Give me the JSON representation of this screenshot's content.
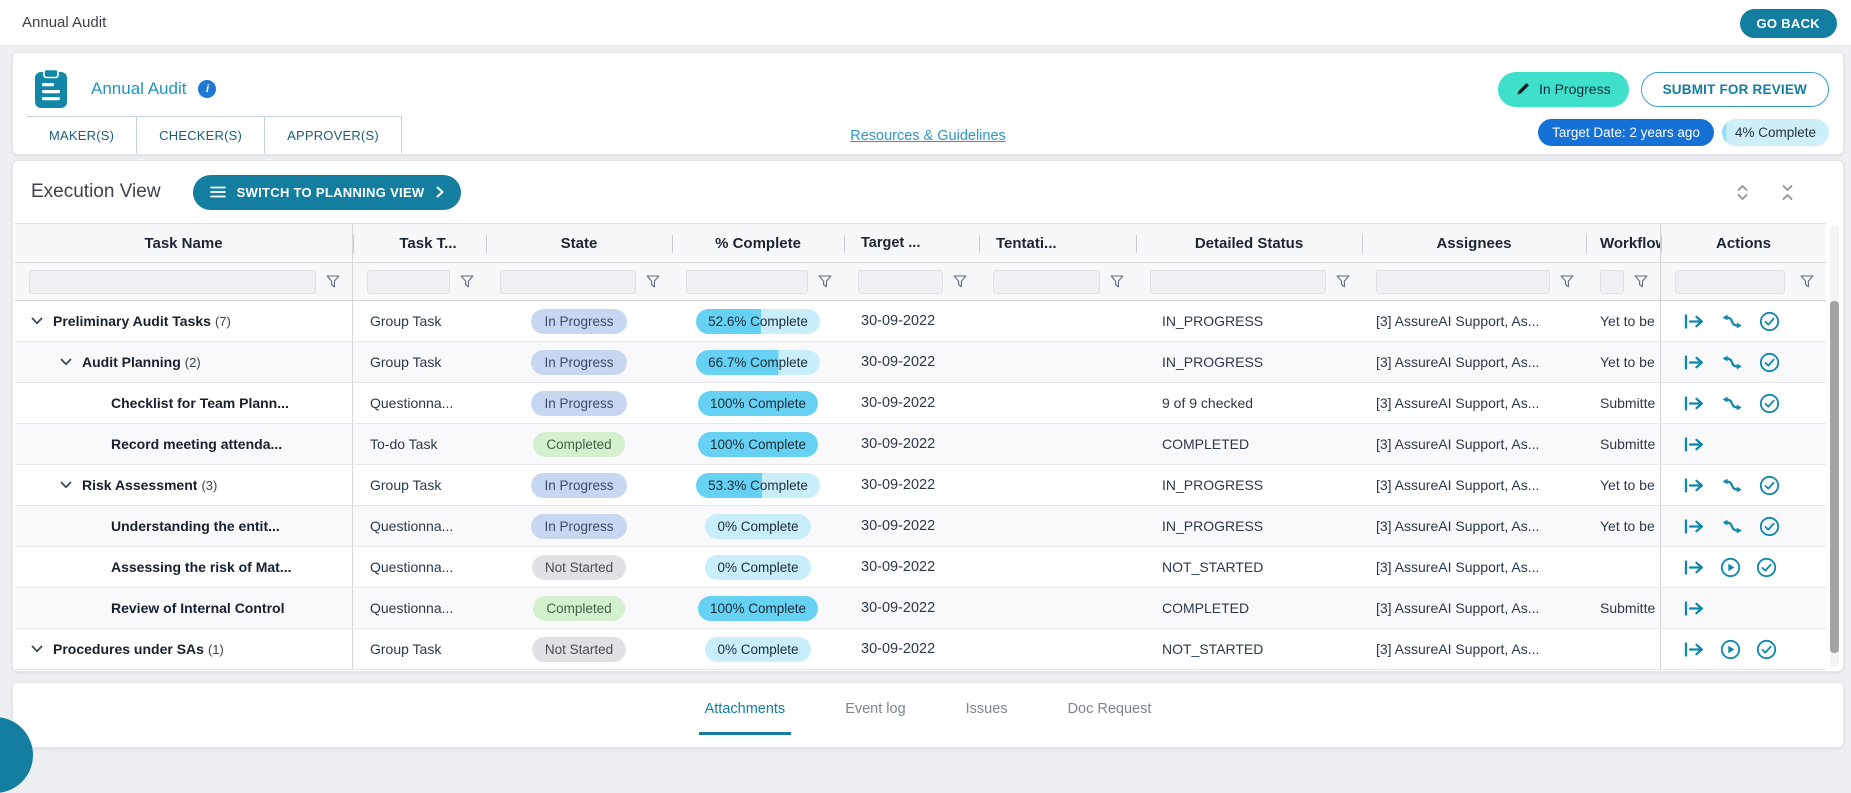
{
  "page": {
    "title": "Annual Audit",
    "go_back": "GO BACK"
  },
  "header": {
    "title": "Annual Audit",
    "info_icon": "i",
    "status_pill": "In Progress",
    "submit_button": "SUBMIT FOR REVIEW",
    "role_tabs": [
      {
        "label": "MAKER(S)"
      },
      {
        "label": "CHECKER(S)"
      },
      {
        "label": "APPROVER(S)"
      }
    ],
    "resources_link": "Resources & Guidelines",
    "target_badge": "Target Date: 2 years ago",
    "complete_badge": {
      "label": "4% Complete",
      "percent": 4
    }
  },
  "view": {
    "title": "Execution View",
    "switch_button": "SWITCH TO PLANNING VIEW"
  },
  "table": {
    "columns": [
      "Task Name",
      "Task T...",
      "State",
      "% Complete",
      "Target ...",
      "Tentati...",
      "Detailed Status",
      "Assignees",
      "Workflow",
      "Actions"
    ],
    "rows": [
      {
        "name": "Preliminary Audit Tasks",
        "count_label": "(7)",
        "level": 1,
        "expandable": true,
        "type": "Group Task",
        "state": "In Progress",
        "state_kind": "inprogress",
        "pct_label": "52.6% Complete",
        "pct": 52.6,
        "target": "30-09-2022",
        "tentative": "",
        "detailed": "IN_PROGRESS",
        "assignees": "[3] AssureAI Support, As...",
        "workflow": "Yet to be",
        "actions": [
          "open",
          "route",
          "check"
        ]
      },
      {
        "name": "Audit Planning",
        "count_label": "(2)",
        "level": 2,
        "expandable": true,
        "type": "Group Task",
        "state": "In Progress",
        "state_kind": "inprogress",
        "pct_label": "66.7% Complete",
        "pct": 66.7,
        "target": "30-09-2022",
        "tentative": "",
        "detailed": "IN_PROGRESS",
        "assignees": "[3] AssureAI Support, As...",
        "workflow": "Yet to be",
        "actions": [
          "open",
          "route",
          "check"
        ]
      },
      {
        "name": "Checklist for Team Plann...",
        "count_label": "",
        "level": 3,
        "expandable": false,
        "type": "Questionna...",
        "state": "In Progress",
        "state_kind": "inprogress",
        "pct_label": "100% Complete",
        "pct": 100,
        "target": "30-09-2022",
        "tentative": "",
        "detailed": "9 of 9 checked",
        "assignees": "[3] AssureAI Support, As...",
        "workflow": "Submitte",
        "actions": [
          "open",
          "route",
          "check"
        ]
      },
      {
        "name": "Record meeting attenda...",
        "count_label": "",
        "level": 3,
        "expandable": false,
        "type": "To-do Task",
        "state": "Completed",
        "state_kind": "completed",
        "pct_label": "100% Complete",
        "pct": 100,
        "target": "30-09-2022",
        "tentative": "",
        "detailed": "COMPLETED",
        "assignees": "[3] AssureAI Support, As...",
        "workflow": "Submitte",
        "actions": [
          "open"
        ]
      },
      {
        "name": "Risk Assessment",
        "count_label": "(3)",
        "level": 2,
        "expandable": true,
        "type": "Group Task",
        "state": "In Progress",
        "state_kind": "inprogress",
        "pct_label": "53.3% Complete",
        "pct": 53.3,
        "target": "30-09-2022",
        "tentative": "",
        "detailed": "IN_PROGRESS",
        "assignees": "[3] AssureAI Support, As...",
        "workflow": "Yet to be",
        "actions": [
          "open",
          "route",
          "check"
        ]
      },
      {
        "name": "Understanding the entit...",
        "count_label": "",
        "level": 3,
        "expandable": false,
        "type": "Questionna...",
        "state": "In Progress",
        "state_kind": "inprogress",
        "pct_label": "0% Complete",
        "pct": 0,
        "target": "30-09-2022",
        "tentative": "",
        "detailed": "IN_PROGRESS",
        "assignees": "[3] AssureAI Support, As...",
        "workflow": "Yet to be",
        "actions": [
          "open",
          "route",
          "check"
        ]
      },
      {
        "name": "Assessing the risk of Mat...",
        "count_label": "",
        "level": 3,
        "expandable": false,
        "type": "Questionna...",
        "state": "Not Started",
        "state_kind": "notstarted",
        "pct_label": "0% Complete",
        "pct": 0,
        "target": "30-09-2022",
        "tentative": "",
        "detailed": "NOT_STARTED",
        "assignees": "[3] AssureAI Support, As...",
        "workflow": "",
        "actions": [
          "open",
          "play",
          "check"
        ]
      },
      {
        "name": "Review of Internal Control",
        "count_label": "",
        "level": 3,
        "expandable": false,
        "type": "Questionna...",
        "state": "Completed",
        "state_kind": "completed",
        "pct_label": "100% Complete",
        "pct": 100,
        "target": "30-09-2022",
        "tentative": "",
        "detailed": "COMPLETED",
        "assignees": "[3] AssureAI Support, As...",
        "workflow": "Submitte",
        "actions": [
          "open"
        ]
      },
      {
        "name": "Procedures under SAs",
        "count_label": "(1)",
        "level": 1,
        "expandable": true,
        "type": "Group Task",
        "state": "Not Started",
        "state_kind": "notstarted",
        "pct_label": "0% Complete",
        "pct": 0,
        "target": "30-09-2022",
        "tentative": "",
        "detailed": "NOT_STARTED",
        "assignees": "[3] AssureAI Support, As...",
        "workflow": "",
        "actions": [
          "open",
          "play",
          "check"
        ]
      }
    ]
  },
  "bottom_tabs": {
    "items": [
      {
        "label": "Attachments",
        "active": true
      },
      {
        "label": "Event log",
        "active": false
      },
      {
        "label": "Issues",
        "active": false
      },
      {
        "label": "Doc Request",
        "active": false
      }
    ]
  },
  "colors": {
    "accent_teal": "#137e9f",
    "icon_teal": "#0f86ab",
    "turquoise": "#3fe0cb",
    "target_blue": "#1571d6",
    "pct_fill": "#66d1f2",
    "pct_bg": "#c9eefb",
    "complete_badge_bg": "#cdeffa",
    "complete_badge_fill": "#9adef2"
  }
}
